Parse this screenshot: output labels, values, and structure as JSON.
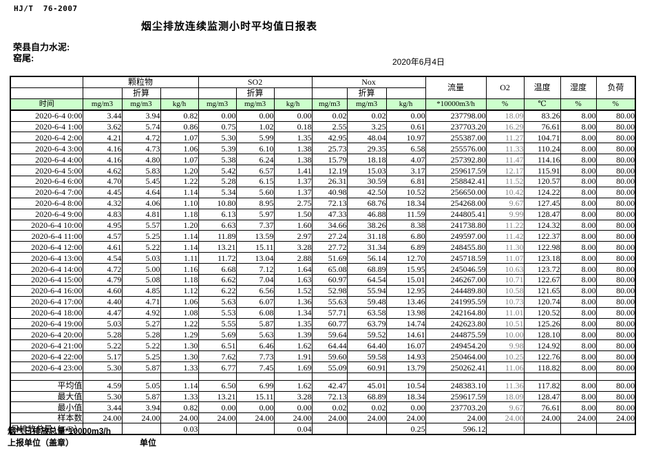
{
  "page": {
    "standard": "HJ/T  76-2007",
    "title": "烟尘排放连续监测小时平均值日报表",
    "company": "荣县自力水泥:",
    "location": "窑尾:",
    "date": "2020年6月4日"
  },
  "table": {
    "header": {
      "time": "时间",
      "groups": [
        {
          "label": "颗粒物",
          "sub": "折算",
          "units": [
            "mg/m3",
            "mg/m3",
            "kg/h"
          ]
        },
        {
          "label": "SO2",
          "sub": "折算",
          "units": [
            "mg/m3",
            "mg/m3",
            "kg/h"
          ]
        },
        {
          "label": "Nox",
          "sub": "折算",
          "units": [
            "mg/m3",
            "mg/m3",
            "kg/h"
          ]
        }
      ],
      "singles": [
        {
          "label": "流量",
          "unit": "*10000m3/h"
        },
        {
          "label": "O2",
          "unit": "%"
        },
        {
          "label": "温度",
          "unit": "℃"
        },
        {
          "label": "湿度",
          "unit": "%"
        },
        {
          "label": "负荷",
          "unit": "%"
        }
      ]
    },
    "rows": [
      {
        "time": "2020-6-4 0:00",
        "values": [
          "3.44",
          "3.94",
          "0.82",
          "0.00",
          "0.00",
          "0.00",
          "0.02",
          "0.02",
          "0.00",
          "237798.00",
          "18.09",
          "83.26",
          "8.00",
          "80.00"
        ]
      },
      {
        "time": "2020-6-4 1:00",
        "values": [
          "3.62",
          "5.74",
          "0.86",
          "0.75",
          "1.02",
          "0.18",
          "2.55",
          "3.25",
          "0.61",
          "237703.20",
          "16.29",
          "76.61",
          "8.00",
          "80.00"
        ]
      },
      {
        "time": "2020-6-4 2:00",
        "values": [
          "4.21",
          "4.72",
          "1.07",
          "5.30",
          "5.99",
          "1.35",
          "42.95",
          "48.04",
          "10.97",
          "255387.00",
          "11.27",
          "104.71",
          "8.00",
          "80.00"
        ]
      },
      {
        "time": "2020-6-4 3:00",
        "values": [
          "4.16",
          "4.73",
          "1.06",
          "5.39",
          "6.10",
          "1.38",
          "25.73",
          "29.35",
          "6.58",
          "255576.00",
          "11.33",
          "110.24",
          "8.00",
          "80.00"
        ]
      },
      {
        "time": "2020-6-4 4:00",
        "values": [
          "4.16",
          "4.80",
          "1.07",
          "5.38",
          "6.24",
          "1.38",
          "15.79",
          "18.18",
          "4.07",
          "257392.80",
          "11.47",
          "114.16",
          "8.00",
          "80.00"
        ]
      },
      {
        "time": "2020-6-4 5:00",
        "values": [
          "4.62",
          "5.83",
          "1.20",
          "5.42",
          "6.57",
          "1.41",
          "12.19",
          "15.03",
          "3.17",
          "259617.59",
          "12.17",
          "115.91",
          "8.00",
          "80.00"
        ]
      },
      {
        "time": "2020-6-4 6:00",
        "values": [
          "4.70",
          "5.45",
          "1.22",
          "5.28",
          "6.15",
          "1.37",
          "26.31",
          "30.59",
          "6.81",
          "258842.41",
          "11.52",
          "120.57",
          "8.00",
          "80.00"
        ]
      },
      {
        "time": "2020-6-4 7:00",
        "values": [
          "4.45",
          "4.64",
          "1.14",
          "5.34",
          "5.60",
          "1.37",
          "40.98",
          "42.50",
          "10.52",
          "256650.00",
          "10.42",
          "124.22",
          "8.00",
          "80.00"
        ]
      },
      {
        "time": "2020-6-4 8:00",
        "values": [
          "4.32",
          "4.06",
          "1.10",
          "10.80",
          "8.95",
          "2.75",
          "72.13",
          "68.76",
          "18.34",
          "254268.00",
          "9.67",
          "127.45",
          "8.00",
          "80.00"
        ]
      },
      {
        "time": "2020-6-4 9:00",
        "values": [
          "4.83",
          "4.81",
          "1.18",
          "6.13",
          "5.97",
          "1.50",
          "47.33",
          "46.88",
          "11.59",
          "244805.41",
          "9.99",
          "128.47",
          "8.00",
          "80.00"
        ]
      },
      {
        "time": "2020-6-4 10:00",
        "values": [
          "4.95",
          "5.57",
          "1.20",
          "6.63",
          "7.37",
          "1.60",
          "34.66",
          "38.26",
          "8.38",
          "241738.80",
          "11.22",
          "124.32",
          "8.00",
          "80.00"
        ]
      },
      {
        "time": "2020-6-4 11:00",
        "values": [
          "4.57",
          "5.25",
          "1.14",
          "11.89",
          "13.59",
          "2.97",
          "27.24",
          "31.18",
          "6.80",
          "249597.00",
          "11.42",
          "122.37",
          "8.00",
          "80.00"
        ]
      },
      {
        "time": "2020-6-4 12:00",
        "values": [
          "4.61",
          "5.22",
          "1.14",
          "13.21",
          "15.11",
          "3.28",
          "27.72",
          "31.34",
          "6.89",
          "248455.80",
          "11.30",
          "122.98",
          "8.00",
          "80.00"
        ]
      },
      {
        "time": "2020-6-4 13:00",
        "values": [
          "4.54",
          "5.03",
          "1.11",
          "11.72",
          "13.04",
          "2.88",
          "51.69",
          "56.14",
          "12.70",
          "245718.59",
          "11.07",
          "123.18",
          "8.00",
          "80.00"
        ]
      },
      {
        "time": "2020-6-4 14:00",
        "values": [
          "4.72",
          "5.00",
          "1.16",
          "6.68",
          "7.12",
          "1.64",
          "65.08",
          "68.89",
          "15.95",
          "245046.59",
          "10.63",
          "123.72",
          "8.00",
          "80.00"
        ]
      },
      {
        "time": "2020-6-4 15:00",
        "values": [
          "4.79",
          "5.08",
          "1.18",
          "6.62",
          "7.04",
          "1.63",
          "60.97",
          "64.54",
          "15.01",
          "246267.00",
          "10.71",
          "122.67",
          "8.00",
          "80.00"
        ]
      },
      {
        "time": "2020-6-4 16:00",
        "values": [
          "4.60",
          "4.85",
          "1.12",
          "6.22",
          "6.56",
          "1.52",
          "52.98",
          "55.94",
          "12.95",
          "244489.80",
          "10.58",
          "121.65",
          "8.00",
          "80.00"
        ]
      },
      {
        "time": "2020-6-4 17:00",
        "values": [
          "4.40",
          "4.71",
          "1.06",
          "5.63",
          "6.07",
          "1.36",
          "55.63",
          "59.48",
          "13.46",
          "241995.59",
          "10.73",
          "120.74",
          "8.00",
          "80.00"
        ]
      },
      {
        "time": "2020-6-4 18:00",
        "values": [
          "4.47",
          "4.92",
          "1.08",
          "5.53",
          "6.08",
          "1.34",
          "57.71",
          "63.58",
          "13.98",
          "242164.80",
          "11.01",
          "120.52",
          "8.00",
          "80.00"
        ]
      },
      {
        "time": "2020-6-4 19:00",
        "values": [
          "5.03",
          "5.27",
          "1.22",
          "5.55",
          "5.87",
          "1.35",
          "60.77",
          "63.79",
          "14.74",
          "242623.80",
          "10.51",
          "125.26",
          "8.00",
          "80.00"
        ]
      },
      {
        "time": "2020-6-4 20:00",
        "values": [
          "5.28",
          "5.28",
          "1.29",
          "5.69",
          "5.63",
          "1.39",
          "59.64",
          "59.52",
          "14.61",
          "244875.59",
          "10.00",
          "128.10",
          "8.00",
          "80.00"
        ]
      },
      {
        "time": "2020-6-4 21:00",
        "values": [
          "5.22",
          "5.22",
          "1.30",
          "6.51",
          "6.46",
          "1.62",
          "64.44",
          "64.40",
          "16.07",
          "249454.20",
          "9.98",
          "124.92",
          "8.00",
          "80.00"
        ]
      },
      {
        "time": "2020-6-4 22:00",
        "values": [
          "5.17",
          "5.25",
          "1.30",
          "7.62",
          "7.73",
          "1.91",
          "59.60",
          "59.58",
          "14.93",
          "250464.00",
          "10.25",
          "122.76",
          "8.00",
          "80.00"
        ]
      },
      {
        "time": "2020-6-4 23:00",
        "values": [
          "5.30",
          "5.87",
          "1.33",
          "6.77",
          "7.45",
          "1.69",
          "55.09",
          "60.91",
          "13.79",
          "250262.41",
          "11.06",
          "118.82",
          "8.00",
          "80.00"
        ]
      }
    ],
    "summary": [
      {
        "label": "平均值",
        "total": false,
        "values": [
          "4.59",
          "5.05",
          "1.14",
          "6.50",
          "6.99",
          "1.62",
          "42.47",
          "45.01",
          "10.54",
          "248383.10",
          "11.36",
          "117.82",
          "8.00",
          "80.00"
        ]
      },
      {
        "label": "最大值",
        "total": false,
        "values": [
          "5.30",
          "5.87",
          "1.33",
          "13.21",
          "15.11",
          "3.28",
          "72.13",
          "68.89",
          "18.34",
          "259617.59",
          "18.09",
          "128.47",
          "8.00",
          "80.00"
        ]
      },
      {
        "label": "最小值",
        "total": false,
        "values": [
          "3.44",
          "3.94",
          "0.82",
          "0.00",
          "0.00",
          "0.00",
          "0.02",
          "0.02",
          "0.00",
          "237703.20",
          "9.67",
          "76.61",
          "8.00",
          "80.00"
        ]
      },
      {
        "label": "样本数",
        "total": false,
        "values": [
          "24.00",
          "24.00",
          "24.00",
          "24.00",
          "24.00",
          "24.00",
          "24.00",
          "24.00",
          "24.00",
          "24.00",
          "24.00",
          "24.00",
          "24.00",
          "24.00"
        ]
      },
      {
        "label": "日排放总量（T/D）",
        "total": true,
        "values": [
          "",
          "",
          "0.03",
          "",
          "",
          "0.04",
          "",
          "",
          "0.25",
          "596.12",
          "",
          "",
          "",
          ""
        ]
      }
    ]
  },
  "footer": {
    "flue_total_note": "烟气日排放总量*10000m3/h",
    "report_unit_label": "上报单位（盖章）",
    "unit_label": "单位"
  },
  "colors": {
    "header_green": "#ccffcc",
    "border": "#000000",
    "o2_text": "#808080"
  }
}
